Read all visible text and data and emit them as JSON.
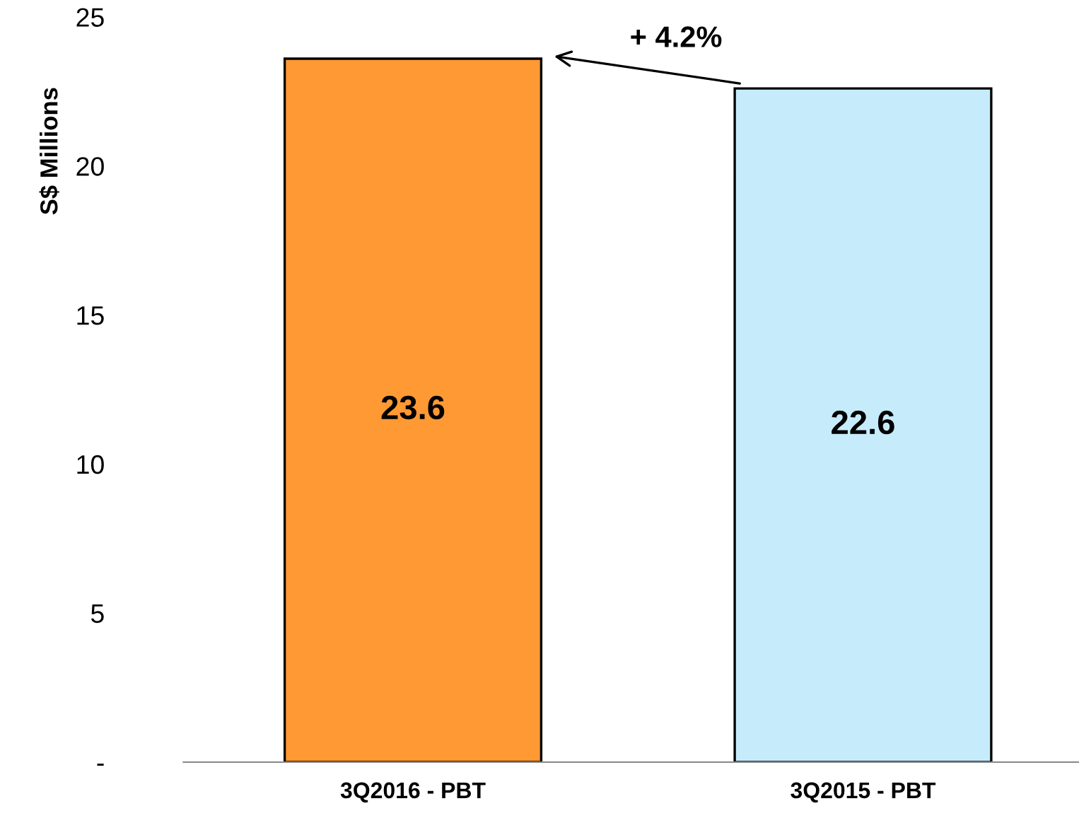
{
  "chart_data": {
    "type": "bar",
    "ylabel": "S$ Millions",
    "categories": [
      "3Q2016 - PBT",
      "3Q2015 - PBT"
    ],
    "values": [
      23.6,
      22.6
    ],
    "colors": [
      "#ff9933",
      "#c6ecfc"
    ],
    "ylim": [
      0,
      25
    ],
    "yticks": [
      {
        "value": 0,
        "label": "-"
      },
      5,
      10,
      15,
      20,
      25
    ],
    "data_labels": true,
    "grid": false,
    "legend": false,
    "annotations": [
      "+ 4.2%"
    ]
  }
}
